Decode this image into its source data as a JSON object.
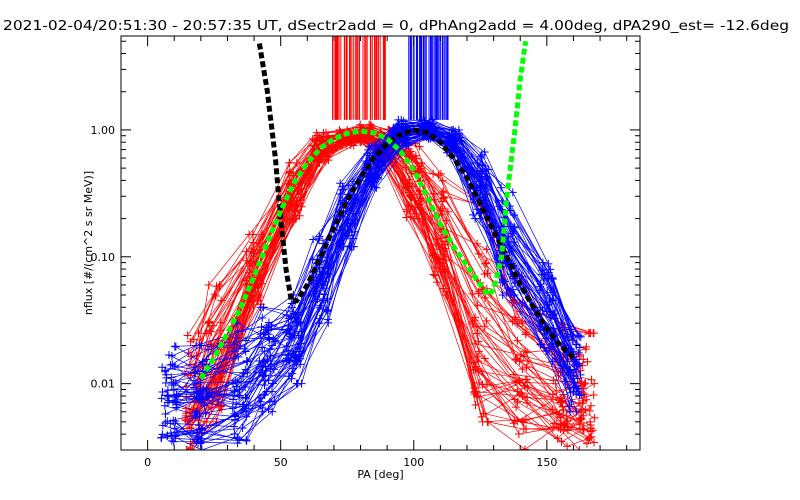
{
  "chart_data": {
    "type": "line",
    "title": "2021-02-04/20:51:30 - 20:57:35 UT, dSectr2add = 0, dPhAng2add = 4.00deg, dPA290_est= -12.6deg",
    "xlabel": "PA [deg]",
    "ylabel": "nflux [#/(cm^2 s sr MeV)]",
    "xlim": [
      -10,
      185
    ],
    "ylim": [
      0.003,
      5.5
    ],
    "y_scale": "log",
    "grid": false,
    "x_ticks": [
      0,
      50,
      100,
      150
    ],
    "x_tick_labels": [
      "0",
      "50",
      "100",
      "150"
    ],
    "y_ticks": [
      0.01,
      0.1,
      1.0
    ],
    "y_tick_labels": [
      "0.01",
      "0.10",
      "1.00"
    ],
    "colors": {
      "red": "#ff0000",
      "blue": "#0000ff",
      "black": "#000000",
      "green": "#00ff00"
    },
    "series": [
      {
        "color": "red",
        "style": "thin lines with plus markers",
        "x": [
          17,
          25,
          40,
          55,
          65,
          75,
          82,
          90,
          100,
          110,
          125,
          140,
          155,
          165
        ],
        "y": [
          0.012,
          0.03,
          0.09,
          0.35,
          0.75,
          0.9,
          1.0,
          0.8,
          0.45,
          0.17,
          0.045,
          0.015,
          0.008,
          0.006
        ],
        "spread_low": [
          0.003,
          0.005,
          0.04,
          0.2,
          0.55,
          0.75,
          0.8,
          0.55,
          0.2,
          0.05,
          0.005,
          0.003,
          0.003,
          0.003
        ],
        "spread_high": [
          0.025,
          0.06,
          0.15,
          0.55,
          0.95,
          1.0,
          1.1,
          1.0,
          0.8,
          0.45,
          0.25,
          0.07,
          0.03,
          0.025
        ],
        "tick_marks_x": [
          69,
          90
        ]
      },
      {
        "color": "blue",
        "style": "thin lines with plus markers",
        "x": [
          8,
          20,
          35,
          45,
          55,
          65,
          75,
          85,
          95,
          105,
          115,
          125,
          135,
          150,
          160
        ],
        "y": [
          0.009,
          0.009,
          0.012,
          0.015,
          0.02,
          0.06,
          0.2,
          0.5,
          0.9,
          1.0,
          0.8,
          0.4,
          0.12,
          0.04,
          0.015
        ],
        "spread_low": [
          0.003,
          0.003,
          0.003,
          0.006,
          0.01,
          0.03,
          0.12,
          0.35,
          0.75,
          0.85,
          0.65,
          0.2,
          0.05,
          0.015,
          0.006
        ],
        "spread_high": [
          0.02,
          0.02,
          0.03,
          0.04,
          0.05,
          0.15,
          0.4,
          0.75,
          1.2,
          1.2,
          1.0,
          0.7,
          0.35,
          0.1,
          0.03
        ],
        "tick_marks_x": [
          98,
          113
        ]
      },
      {
        "color": "black",
        "style": "thick dashed",
        "x": [
          42,
          45,
          48,
          50,
          52,
          54,
          56,
          60,
          65,
          70,
          75,
          80,
          85,
          90,
          95,
          100,
          105,
          110,
          115,
          120,
          125,
          130,
          135,
          140,
          145,
          150,
          155,
          160
        ],
        "y": [
          4.8,
          2.0,
          0.6,
          0.2,
          0.08,
          0.045,
          0.045,
          0.06,
          0.1,
          0.17,
          0.28,
          0.42,
          0.6,
          0.78,
          0.92,
          1.0,
          0.95,
          0.8,
          0.6,
          0.42,
          0.26,
          0.16,
          0.1,
          0.06,
          0.04,
          0.027,
          0.02,
          0.016
        ]
      },
      {
        "color": "green",
        "style": "thick dashed",
        "x": [
          20,
          25,
          30,
          35,
          40,
          45,
          50,
          55,
          60,
          65,
          70,
          75,
          80,
          85,
          90,
          95,
          100,
          105,
          110,
          115,
          120,
          125,
          128,
          130,
          133,
          135,
          138,
          140,
          142
        ],
        "y": [
          0.011,
          0.016,
          0.025,
          0.04,
          0.07,
          0.13,
          0.23,
          0.38,
          0.55,
          0.72,
          0.85,
          0.94,
          0.98,
          0.95,
          0.85,
          0.68,
          0.48,
          0.3,
          0.18,
          0.12,
          0.085,
          0.06,
          0.05,
          0.055,
          0.1,
          0.3,
          1.0,
          2.5,
          5.0
        ]
      }
    ]
  }
}
